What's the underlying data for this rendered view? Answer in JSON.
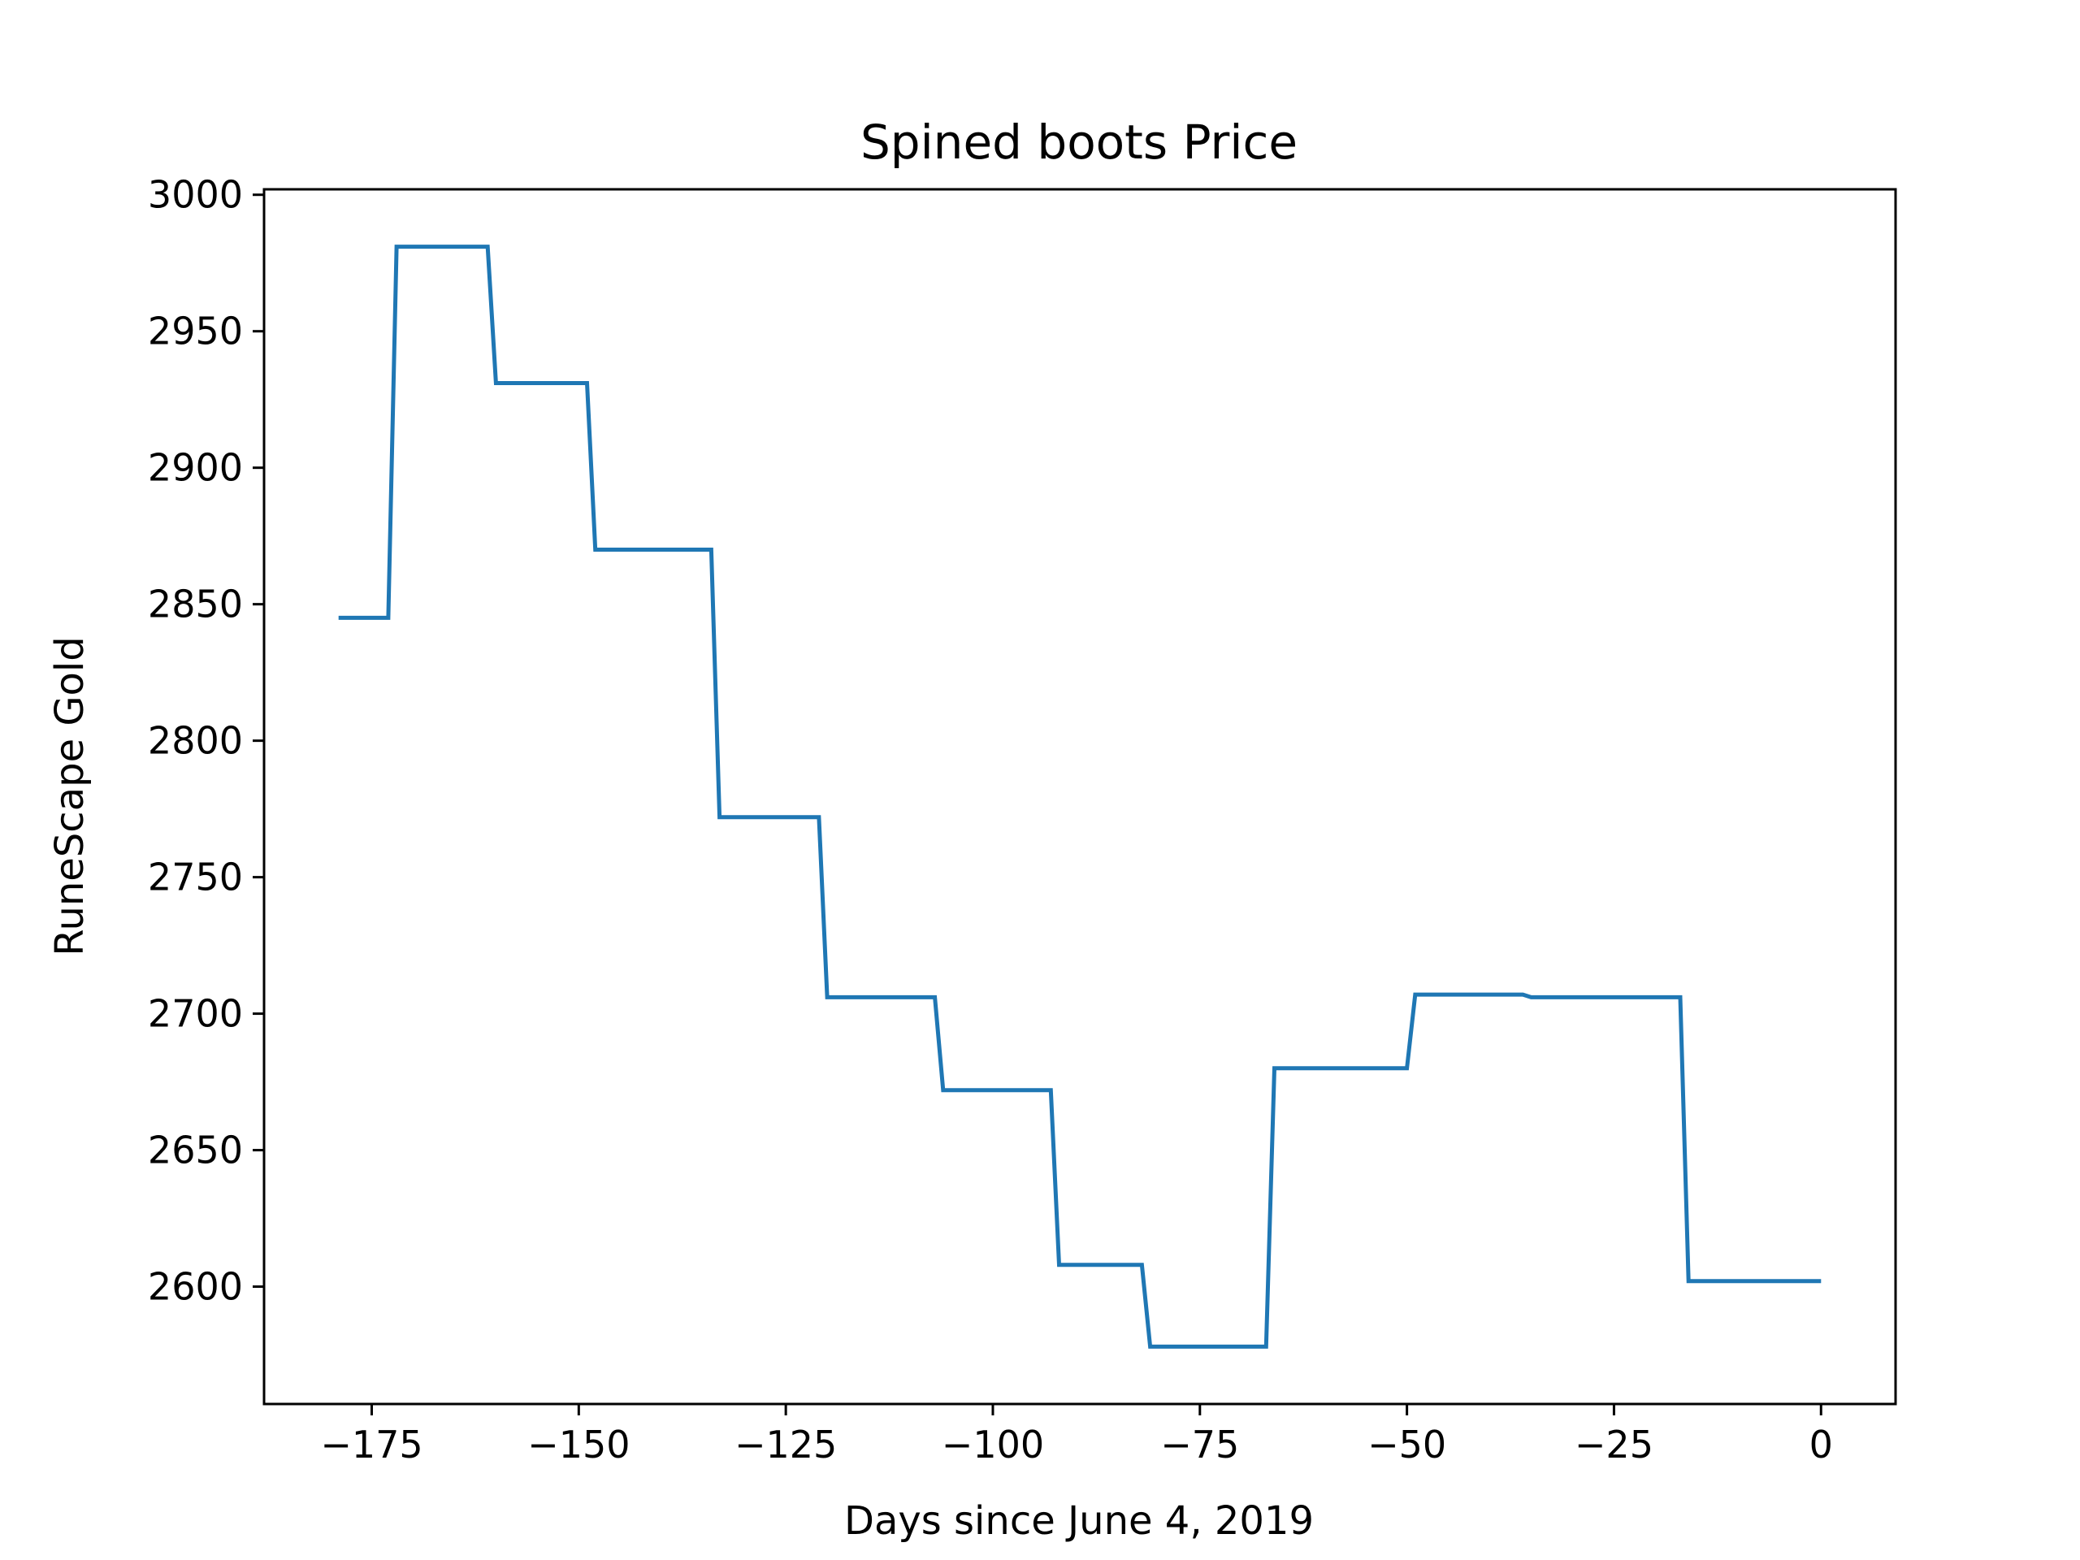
{
  "chart_data": {
    "type": "line",
    "title": "Spined boots Price",
    "xlabel": "Days since June 4, 2019",
    "ylabel": "RuneScape Gold",
    "xlim": [
      -188,
      9
    ],
    "ylim": [
      2557,
      3002
    ],
    "x_ticks": [
      -175,
      -150,
      -125,
      -100,
      -75,
      -50,
      -25,
      0
    ],
    "x_tick_labels": [
      "−175",
      "−150",
      "−125",
      "−100",
      "−75",
      "−50",
      "−25",
      "0"
    ],
    "y_ticks": [
      2600,
      2650,
      2700,
      2750,
      2800,
      2850,
      2900,
      2950,
      3000
    ],
    "y_tick_labels": [
      "2600",
      "2650",
      "2700",
      "2750",
      "2800",
      "2850",
      "2900",
      "2950",
      "3000"
    ],
    "grid": false,
    "series": [
      {
        "color": "#1f77b4",
        "x": [
          -179,
          -173,
          -172,
          -161,
          -160,
          -149,
          -148,
          -134,
          -133,
          -121,
          -120,
          -107,
          -106,
          -93,
          -92,
          -82,
          -81,
          -67,
          -66,
          -50,
          -49,
          -36,
          -35,
          -17,
          -16,
          0
        ],
        "y": [
          2845,
          2845,
          2981,
          2981,
          2931,
          2931,
          2870,
          2870,
          2772,
          2772,
          2706,
          2706,
          2672,
          2672,
          2608,
          2608,
          2578,
          2578,
          2680,
          2680,
          2707,
          2707,
          2706,
          2706,
          2602,
          2602
        ]
      }
    ]
  }
}
